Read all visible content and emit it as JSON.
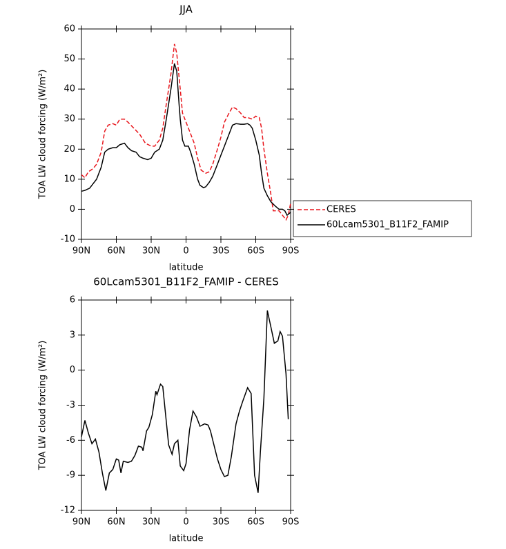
{
  "chart_data": [
    {
      "type": "line",
      "title": "JJA",
      "x_label": "latitude",
      "y_label": "TOA LW cloud forcing (W/m²)",
      "xlim": [
        90,
        -90
      ],
      "xticks": [
        {
          "value": 90,
          "label": "90N"
        },
        {
          "value": 60,
          "label": "60N"
        },
        {
          "value": 30,
          "label": "30N"
        },
        0,
        {
          "value": -30,
          "label": "30S"
        },
        {
          "value": -60,
          "label": "60S"
        },
        {
          "value": -90,
          "label": "90S"
        }
      ],
      "ylim": [
        -10,
        60
      ],
      "yticks": [
        -10,
        0,
        10,
        20,
        30,
        40,
        50,
        60
      ],
      "legend": "right",
      "series": [
        {
          "name": "CERES",
          "color": "#e8151b",
          "linestyle": "dashed",
          "x": [
            90,
            87,
            84,
            80,
            77,
            73,
            70,
            67,
            63,
            60,
            57,
            53,
            50,
            45,
            40,
            35,
            30,
            27,
            23,
            20,
            17,
            13,
            10,
            8,
            5,
            3,
            0,
            -3,
            -7,
            -10,
            -13,
            -17,
            -20,
            -23,
            -27,
            -30,
            -33,
            -37,
            -40,
            -43,
            -47,
            -50,
            -53,
            -57,
            -60,
            -63,
            -65,
            -67,
            -70,
            -73,
            -75,
            -78,
            -80,
            -83,
            -86,
            -88,
            -90
          ],
          "values": [
            11.5,
            10.5,
            12.5,
            13.5,
            15,
            19,
            26,
            28,
            28.5,
            28,
            30,
            30,
            29,
            27,
            25,
            22,
            21,
            21,
            23,
            27,
            35,
            45,
            55,
            52,
            40,
            32,
            29,
            26,
            22,
            17,
            13,
            12,
            12.5,
            15,
            20,
            24,
            29,
            32,
            34,
            33.5,
            32,
            30.5,
            30.5,
            30,
            31,
            30.5,
            27,
            20,
            12,
            5,
            -0.5,
            -0.5,
            -0.5,
            -2,
            -3.5,
            -2,
            2
          ]
        },
        {
          "name": "60Lcam5301_B11F2_FAMIP",
          "color": "#000000",
          "linestyle": "solid",
          "x": [
            90,
            87,
            83,
            80,
            77,
            73,
            70,
            67,
            63,
            60,
            57,
            53,
            50,
            47,
            43,
            40,
            37,
            33,
            30,
            27,
            23,
            20,
            17,
            13,
            10,
            8,
            6,
            5,
            3,
            1,
            -2,
            -4,
            -7,
            -10,
            -12,
            -15,
            -17,
            -20,
            -23,
            -27,
            -30,
            -33,
            -37,
            -40,
            -43,
            -47,
            -50,
            -53,
            -55,
            -57,
            -60,
            -63,
            -65,
            -67,
            -70,
            -73,
            -77,
            -80,
            -83,
            -85,
            -87,
            -90
          ],
          "values": [
            6,
            6.3,
            7,
            8.5,
            10,
            14,
            19,
            20,
            20.5,
            20.5,
            21.5,
            22,
            20.5,
            19.5,
            19,
            17.5,
            17,
            16.5,
            17,
            19,
            20,
            23,
            30,
            40,
            48.5,
            46,
            35,
            30,
            23,
            21,
            21,
            19,
            15,
            10,
            8,
            7.2,
            7.5,
            9,
            11,
            15,
            18,
            21,
            25,
            28,
            28.5,
            28.3,
            28.3,
            28.5,
            28,
            27,
            23,
            18,
            12,
            7,
            4.5,
            2.5,
            1,
            0,
            0,
            -0.5,
            -2,
            -1
          ]
        }
      ]
    },
    {
      "type": "line",
      "title": "60Lcam5301_B11F2_FAMIP - CERES",
      "x_label": "latitude",
      "y_label": "TOA LW cloud forcing (W/m²)",
      "xlim": [
        90,
        -90
      ],
      "xticks": [
        {
          "value": 90,
          "label": "90N"
        },
        {
          "value": 60,
          "label": "60N"
        },
        {
          "value": 30,
          "label": "30N"
        },
        0,
        {
          "value": -30,
          "label": "30S"
        },
        {
          "value": -60,
          "label": "60S"
        },
        {
          "value": -90,
          "label": "90S"
        }
      ],
      "ylim": [
        -12,
        6
      ],
      "yticks": [
        -12,
        -9,
        -6,
        -3,
        0,
        3,
        6
      ],
      "series": [
        {
          "color": "#000000",
          "linestyle": "solid",
          "x": [
            90,
            87,
            84,
            81,
            78,
            75,
            72,
            69,
            66,
            63,
            60,
            58,
            56,
            54,
            50,
            47,
            44,
            41,
            38,
            37,
            34,
            32,
            29,
            26,
            25,
            22,
            20,
            18,
            15,
            12,
            10,
            7,
            5,
            2,
            0,
            -3,
            -6,
            -9,
            -12,
            -16,
            -19,
            -21,
            -24,
            -27,
            -30,
            -33,
            -36,
            -39,
            -43,
            -46,
            -49,
            -53,
            -56,
            -59,
            -62,
            -64,
            -67,
            -70,
            -73,
            -76,
            -79,
            -81,
            -83,
            -86,
            -88
          ],
          "values": [
            -5.7,
            -4.3,
            -5.4,
            -6.3,
            -5.9,
            -7,
            -8.8,
            -10.3,
            -8.8,
            -8.5,
            -7.6,
            -7.7,
            -8.8,
            -7.8,
            -7.9,
            -7.8,
            -7.3,
            -6.5,
            -6.6,
            -6.9,
            -5.2,
            -4.9,
            -3.8,
            -1.8,
            -2.1,
            -1.2,
            -1.4,
            -3.4,
            -6.4,
            -7.2,
            -6.3,
            -6,
            -8.2,
            -8.6,
            -8,
            -5.1,
            -3.5,
            -4,
            -4.8,
            -4.6,
            -4.7,
            -5.2,
            -6.4,
            -7.6,
            -8.5,
            -9.1,
            -9,
            -7.4,
            -4.6,
            -3.5,
            -2.6,
            -1.5,
            -2,
            -9,
            -10.5,
            -7,
            -2.4,
            5.1,
            3.7,
            2.3,
            2.5,
            3.3,
            2.9,
            -0.3,
            -4.2
          ]
        }
      ]
    }
  ]
}
